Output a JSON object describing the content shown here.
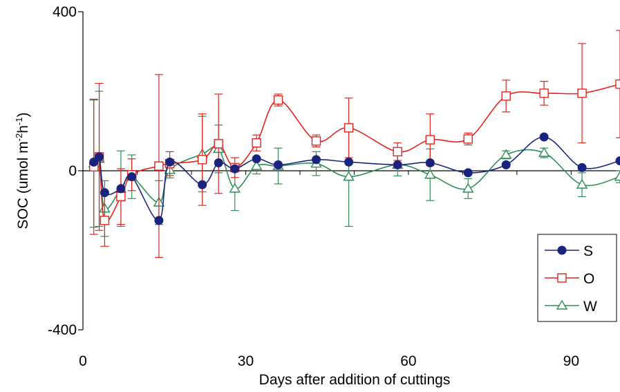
{
  "chart_data": {
    "type": "line",
    "xlabel": "Days after addition of cuttings",
    "ylabel": {
      "prefix": "SOC (umol m",
      "sup1": "-2",
      "mid": "h",
      "sup2": "-1",
      "suffix": ")"
    },
    "xlim": [
      0,
      99
    ],
    "ylim": [
      -400,
      400
    ],
    "x_ticks": [
      0,
      30,
      60,
      90
    ],
    "x_tick_labels": [
      "0",
      "30",
      "60",
      "90"
    ],
    "x_minor_step": 10,
    "y_ticks": [
      -400,
      0,
      400
    ],
    "y_tick_labels": [
      "-400",
      "0",
      "400"
    ],
    "grid": false,
    "zero_line": true,
    "legend_position": "bottom-right",
    "series": [
      {
        "name": "S",
        "color": "#1a237e",
        "marker": "filled-circle",
        "x": [
          2,
          3,
          4,
          7,
          9,
          14,
          16,
          22,
          25,
          28,
          32,
          36,
          43,
          49,
          58,
          64,
          71,
          78,
          85,
          92,
          99
        ],
        "y": [
          22,
          35,
          -55,
          -45,
          -15,
          -125,
          22,
          -35,
          20,
          5,
          30,
          15,
          28,
          22,
          15,
          20,
          -5,
          15,
          85,
          8,
          25
        ],
        "err": [
          0,
          0,
          0,
          0,
          0,
          0,
          0,
          0,
          0,
          0,
          0,
          0,
          0,
          0,
          0,
          0,
          0,
          0,
          0,
          0,
          0
        ]
      },
      {
        "name": "O",
        "color": "#e8211a",
        "marker": "open-square",
        "x": [
          2,
          3,
          4,
          7,
          9,
          14,
          16,
          22,
          25,
          28,
          32,
          36,
          43,
          49,
          58,
          64,
          71,
          78,
          85,
          92,
          99
        ],
        "y": [
          10,
          35,
          -125,
          -65,
          -10,
          12,
          18,
          28,
          68,
          8,
          70,
          178,
          75,
          108,
          48,
          78,
          80,
          188,
          195,
          195,
          218
        ],
        "err": [
          170,
          185,
          65,
          70,
          40,
          230,
          30,
          115,
          125,
          25,
          20,
          15,
          15,
          75,
          22,
          65,
          15,
          40,
          30,
          125,
          135
        ]
      },
      {
        "name": "W",
        "color": "#2e8b57",
        "marker": "open-triangle",
        "x": [
          2,
          3,
          4,
          7,
          9,
          14,
          16,
          22,
          25,
          28,
          32,
          36,
          43,
          49,
          58,
          64,
          71,
          78,
          85,
          92,
          99
        ],
        "y": [
          18,
          30,
          -95,
          -45,
          -15,
          -80,
          2,
          42,
          55,
          -45,
          12,
          12,
          18,
          -15,
          15,
          -10,
          -45,
          40,
          45,
          -35,
          -15
        ],
        "err": [
          160,
          170,
          70,
          95,
          55,
          55,
          20,
          95,
          60,
          55,
          20,
          45,
          30,
          125,
          28,
          65,
          25,
          10,
          12,
          30,
          15
        ]
      }
    ]
  }
}
